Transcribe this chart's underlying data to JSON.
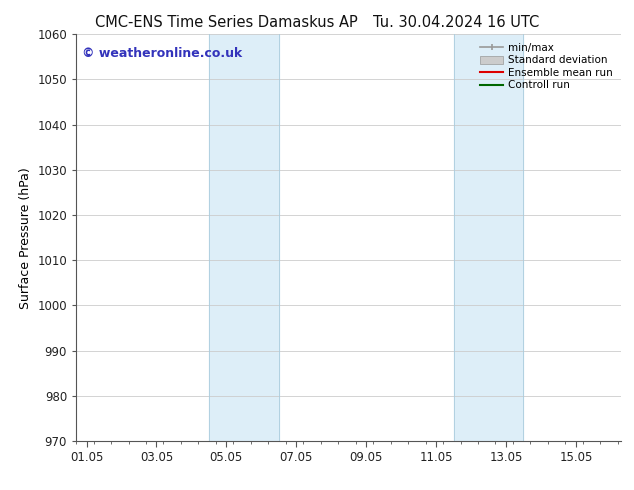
{
  "title_left": "CMC-ENS Time Series Damaskus AP",
  "title_right": "Tu. 30.04.2024 16 UTC",
  "ylabel": "Surface Pressure (hPa)",
  "ylim": [
    970,
    1060
  ],
  "yticks": [
    970,
    980,
    990,
    1000,
    1010,
    1020,
    1030,
    1040,
    1050,
    1060
  ],
  "xtick_labels": [
    "01.05",
    "03.05",
    "05.05",
    "07.05",
    "09.05",
    "11.05",
    "13.05",
    "15.05"
  ],
  "xtick_positions": [
    0,
    2,
    4,
    6,
    8,
    10,
    12,
    14
  ],
  "xmin": -0.3,
  "xmax": 15.3,
  "shaded_bands": [
    {
      "x_start": 3.5,
      "x_end": 5.5
    },
    {
      "x_start": 10.5,
      "x_end": 12.5
    }
  ],
  "shaded_color": "#ddeef8",
  "watermark_text": "© weatheronline.co.uk",
  "watermark_color": "#3333bb",
  "legend_items": [
    {
      "label": "min/max",
      "color": "#999999",
      "style": "line_with_caps"
    },
    {
      "label": "Standard deviation",
      "color": "#cccccc",
      "style": "filled_box"
    },
    {
      "label": "Ensemble mean run",
      "color": "#dd0000",
      "style": "line"
    },
    {
      "label": "Controll run",
      "color": "#006600",
      "style": "line"
    }
  ],
  "bg_color": "#ffffff",
  "grid_color": "#cccccc",
  "title_fontsize": 10.5,
  "axis_fontsize": 9,
  "tick_fontsize": 8.5,
  "watermark_fontsize": 9
}
